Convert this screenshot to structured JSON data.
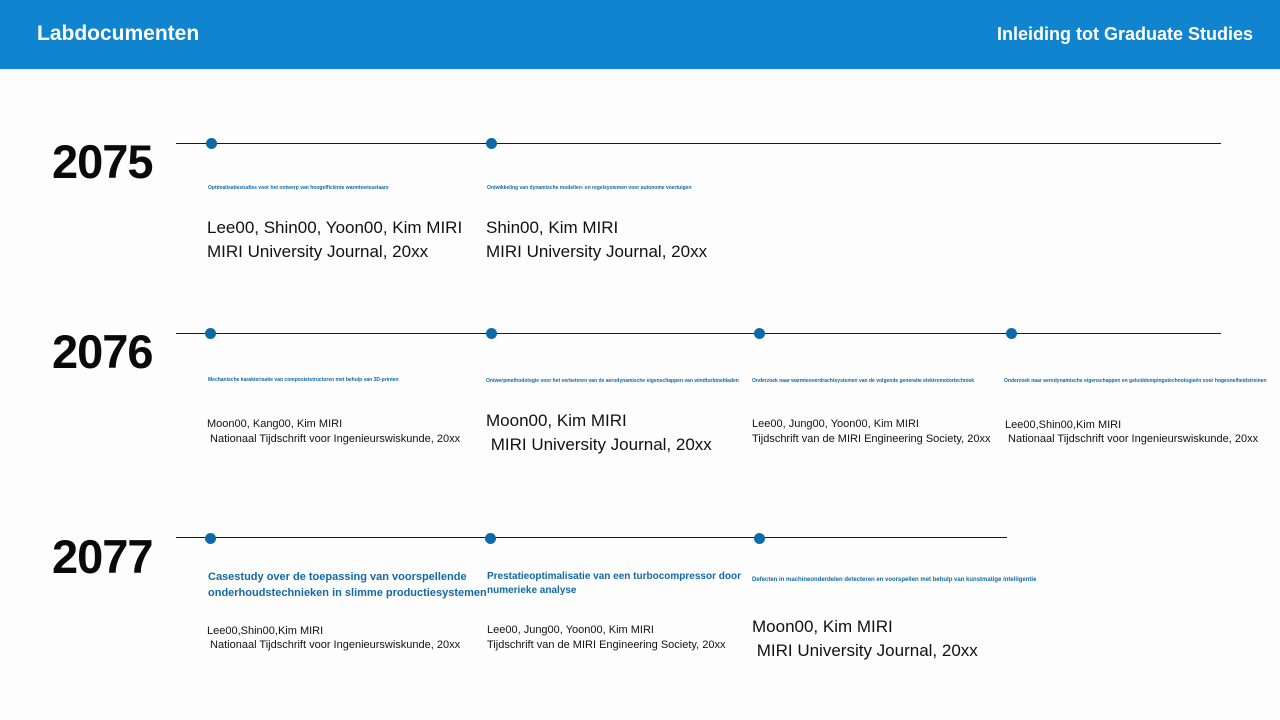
{
  "header": {
    "title": "Labdocumenten",
    "subtitle": "Inleiding tot Graduate Studies"
  },
  "colors": {
    "header_bg": "#1184d0",
    "accent": "#1169a8",
    "dot": "#0d6aa8"
  },
  "timeline": [
    {
      "year": "2075",
      "entries": [
        {
          "title": "Optimalisatiestudies voor het ontwerp van hoogefficiënte warmtewisselaars",
          "authors": "Lee00, Shin00, Yoon00, Kim MIRI",
          "journal": "MIRI University Journal, 20xx"
        },
        {
          "title": "Ontwikkeling van dynamische modellen- en regelsystemen voor autonome voertuigen",
          "authors": "Shin00, Kim MIRI",
          "journal": "MIRI University Journal, 20xx"
        }
      ]
    },
    {
      "year": "2076",
      "entries": [
        {
          "title": "Mechanische karakterisatie van composietstructuren met behulp van 3D-printen",
          "authors": "Moon00, Kang00, Kim MIRI",
          "journal": " Nationaal Tijdschrift voor Ingenieurswiskunde, 20xx"
        },
        {
          "title": "Ontwerpmethodologie voor het verbeteren van de aerodynamische eigenschappen van windturbinebladen",
          "authors": "Moon00, Kim MIRI",
          "journal": " MIRI University Journal, 20xx"
        },
        {
          "title": "Onderzoek naar warmteoverdrachtsystemen van de volgende generatie elektromotortechniek",
          "authors": "Lee00, Jung00, Yoon00, Kim MIRI",
          "journal": "Tijdschrift van de MIRI Engineering Society, 20xx"
        },
        {
          "title": "Onderzoek naar aerodynamische eigenschappen en geluiddempingstechnologieën voor hogesnelheidstreinen",
          "authors": "Lee00,Shin00,Kim MIRI",
          "journal": " Nationaal Tijdschrift voor Ingenieurswiskunde, 20xx"
        }
      ]
    },
    {
      "year": "2077",
      "entries": [
        {
          "title": "Casestudy over de toepassing van voorspellende onderhoudstechnieken in slimme productiesystemen",
          "authors": "Lee00,Shin00,Kim MIRI",
          "journal": " Nationaal Tijdschrift voor Ingenieurswiskunde, 20xx"
        },
        {
          "title": "Prestatieoptimalisatie van een turbocompressor door numerieke analyse",
          "authors": "Lee00, Jung00, Yoon00, Kim MIRI",
          "journal": "Tijdschrift van de MIRI Engineering Society, 20xx"
        },
        {
          "title": "Defecten in machineonderdelen detecteren en voorspellen met behulp van kunstmatige intelligentie",
          "authors": "Moon00, Kim MIRI",
          "journal": " MIRI University Journal, 20xx"
        }
      ]
    }
  ]
}
